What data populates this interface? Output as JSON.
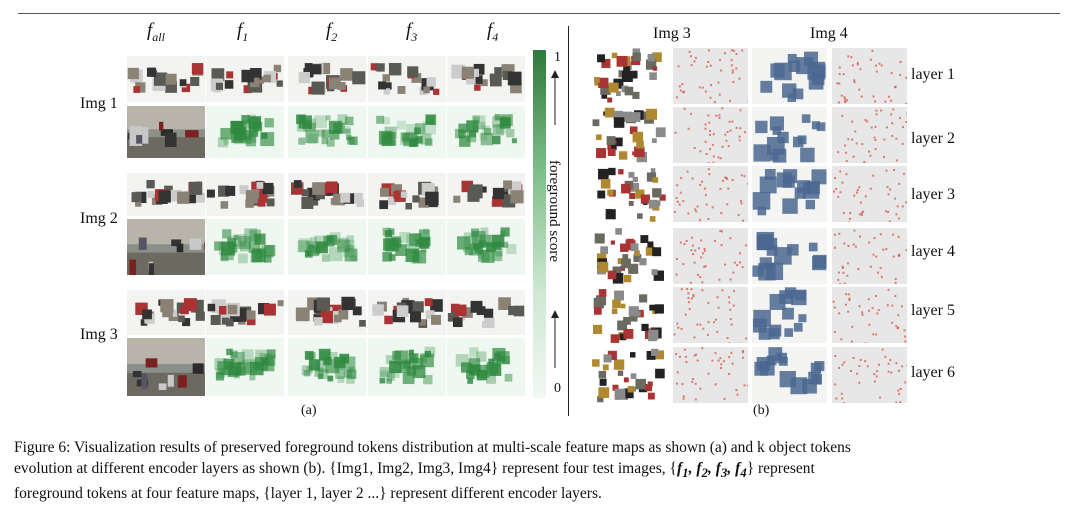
{
  "panel_a": {
    "column_headers": [
      {
        "base": "f",
        "sub": "all"
      },
      {
        "base": "f",
        "sub": "1"
      },
      {
        "base": "f",
        "sub": "2"
      },
      {
        "base": "f",
        "sub": "3"
      },
      {
        "base": "f",
        "sub": "4"
      }
    ],
    "row_labels": [
      "Img 1",
      "Img 2",
      "Img 3"
    ],
    "colorbar": {
      "max_label": "1",
      "min_label": "0",
      "title": "foreground score",
      "color_high": "#2d7a3a",
      "color_low": "#f2f8f3"
    },
    "label": "(a)"
  },
  "panel_b": {
    "image_headers": [
      "Img 3",
      "Img 4"
    ],
    "layer_labels": [
      "layer 1",
      "layer 2",
      "layer 3",
      "layer 4",
      "layer 5",
      "layer 6"
    ],
    "label": "(b)"
  },
  "caption": {
    "line1": "Figure 6: Visualization results of preserved foreground tokens distribution at multi-scale feature maps as shown (a) and k object tokens",
    "line2a": "evolution at different encoder layers as shown (b). {Img1, Img2, Img3, Img4} represent four test images, {",
    "line2_f": [
      "f",
      "1",
      "f",
      "2",
      "f",
      "3",
      "f",
      "4"
    ],
    "line2b": "} represent",
    "line3": "foreground tokens at four feature maps, {layer 1, layer 2 ...} represent different encoder layers."
  },
  "colors": {
    "heat_green": "#2f8a40",
    "token_red": "#d94a3a",
    "token_blue": "#4a6790"
  }
}
